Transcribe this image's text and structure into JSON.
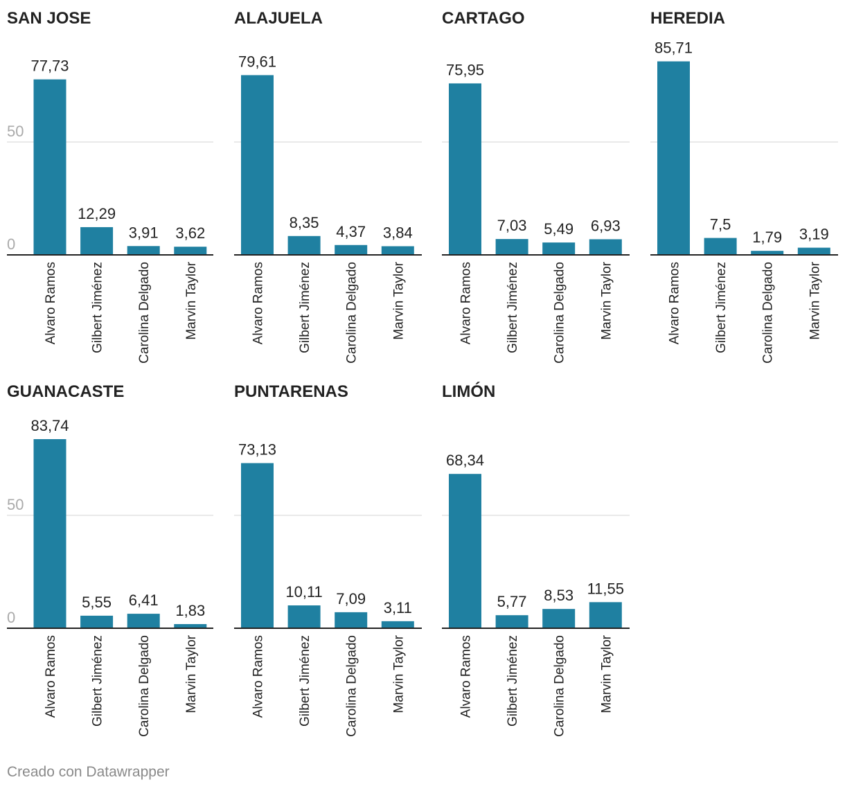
{
  "footer": {
    "credit": "Creado con Datawrapper"
  },
  "colors": {
    "bar": "#1f80a1",
    "gridline": "#e2e2e2",
    "baseline": "#222222",
    "tick_label": "#aaaaaa",
    "text": "#222222"
  },
  "chart_data": [
    {
      "type": "bar",
      "title": "SAN JOSE",
      "categories": [
        "Alvaro Ramos",
        "Gilbert Jiménez",
        "Carolina Delgado",
        "Marvin Taylor"
      ],
      "values": [
        77.73,
        12.29,
        3.91,
        3.62
      ],
      "value_labels": [
        "77,73",
        "12,29",
        "3,91",
        "3,62"
      ],
      "ylim": [
        0,
        100
      ],
      "yticks": [
        0,
        50
      ],
      "ytick_labels": [
        "0",
        "50"
      ],
      "grid": true
    },
    {
      "type": "bar",
      "title": "ALAJUELA",
      "categories": [
        "Alvaro Ramos",
        "Gilbert Jiménez",
        "Carolina Delgado",
        "Marvin Taylor"
      ],
      "values": [
        79.61,
        8.35,
        4.37,
        3.84
      ],
      "value_labels": [
        "79,61",
        "8,35",
        "4,37",
        "3,84"
      ],
      "ylim": [
        0,
        100
      ],
      "yticks": [
        0,
        50
      ],
      "ytick_labels": [],
      "grid": true
    },
    {
      "type": "bar",
      "title": "CARTAGO",
      "categories": [
        "Alvaro Ramos",
        "Gilbert Jiménez",
        "Carolina Delgado",
        "Marvin Taylor"
      ],
      "values": [
        75.95,
        7.03,
        5.49,
        6.93
      ],
      "value_labels": [
        "75,95",
        "7,03",
        "5,49",
        "6,93"
      ],
      "ylim": [
        0,
        100
      ],
      "yticks": [
        0,
        50
      ],
      "ytick_labels": [],
      "grid": true
    },
    {
      "type": "bar",
      "title": "HEREDIA",
      "categories": [
        "Alvaro Ramos",
        "Gilbert Jiménez",
        "Carolina Delgado",
        "Marvin Taylor"
      ],
      "values": [
        85.71,
        7.5,
        1.79,
        3.19
      ],
      "value_labels": [
        "85,71",
        "7,5",
        "1,79",
        "3,19"
      ],
      "ylim": [
        0,
        100
      ],
      "yticks": [
        0,
        50
      ],
      "ytick_labels": [],
      "grid": true
    },
    {
      "type": "bar",
      "title": "GUANACASTE",
      "categories": [
        "Alvaro Ramos",
        "Gilbert Jiménez",
        "Carolina Delgado",
        "Marvin Taylor"
      ],
      "values": [
        83.74,
        5.55,
        6.41,
        1.83
      ],
      "value_labels": [
        "83,74",
        "5,55",
        "6,41",
        "1,83"
      ],
      "ylim": [
        0,
        100
      ],
      "yticks": [
        0,
        50
      ],
      "ytick_labels": [
        "0",
        "50"
      ],
      "grid": true
    },
    {
      "type": "bar",
      "title": "PUNTARENAS",
      "categories": [
        "Alvaro Ramos",
        "Gilbert Jiménez",
        "Carolina Delgado",
        "Marvin Taylor"
      ],
      "values": [
        73.13,
        10.11,
        7.09,
        3.11
      ],
      "value_labels": [
        "73,13",
        "10,11",
        "7,09",
        "3,11"
      ],
      "ylim": [
        0,
        100
      ],
      "yticks": [
        0,
        50
      ],
      "ytick_labels": [],
      "grid": true
    },
    {
      "type": "bar",
      "title": "LIMÓN",
      "categories": [
        "Alvaro Ramos",
        "Gilbert Jiménez",
        "Carolina Delgado",
        "Marvin Taylor"
      ],
      "values": [
        68.34,
        5.77,
        8.53,
        11.55
      ],
      "value_labels": [
        "68,34",
        "5,77",
        "8,53",
        "11,55"
      ],
      "ylim": [
        0,
        100
      ],
      "yticks": [
        0,
        50
      ],
      "ytick_labels": [],
      "grid": true
    }
  ]
}
